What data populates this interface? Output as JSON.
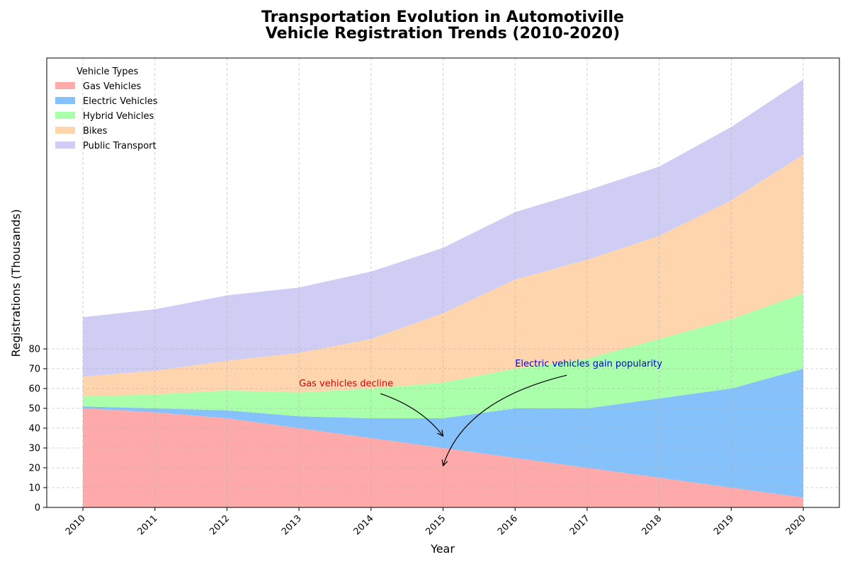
{
  "chart_data": {
    "type": "area",
    "stacked": true,
    "title": "Transportation Evolution in Automotiville",
    "subtitle": "Vehicle Registration Trends (2010-2020)",
    "xlabel": "Year",
    "ylabel": "Registrations (Thousands)",
    "x": [
      2010,
      2011,
      2012,
      2013,
      2014,
      2015,
      2016,
      2017,
      2018,
      2019,
      2020
    ],
    "y_ticks": [
      0,
      10,
      20,
      30,
      40,
      50,
      60,
      70,
      80
    ],
    "ylim": [
      0,
      218
    ],
    "grid": true,
    "legend": {
      "title": "Vehicle Types",
      "placement": "top-left"
    },
    "series": [
      {
        "name": "Gas Vehicles",
        "color": "#ffaaaa",
        "values": [
          50,
          48,
          45,
          40,
          35,
          30,
          25,
          20,
          15,
          10,
          5
        ]
      },
      {
        "name": "Electric Vehicles",
        "color": "#85c1fa",
        "values": [
          1,
          2,
          4,
          6,
          10,
          15,
          25,
          30,
          40,
          50,
          65
        ]
      },
      {
        "name": "Hybrid Vehicles",
        "color": "#aaffaa",
        "values": [
          5,
          7,
          10,
          12,
          15,
          18,
          20,
          25,
          30,
          35,
          38
        ]
      },
      {
        "name": "Bikes",
        "color": "#ffd5ae",
        "values": [
          10,
          12,
          15,
          20,
          25,
          35,
          45,
          50,
          52,
          60,
          70
        ]
      },
      {
        "name": "Public Transport",
        "color": "#cfcdf3",
        "values": [
          30,
          31,
          33,
          33,
          34,
          33,
          34,
          35,
          35,
          37,
          38
        ]
      }
    ],
    "annotations": [
      {
        "text": "Gas vehicles decline",
        "color": "#dd0000",
        "target": [
          2015,
          36
        ],
        "text_at": [
          2013,
          61
        ]
      },
      {
        "text": "Electric vehicles gain popularity",
        "color": "#0000dd",
        "target": [
          2015,
          21
        ],
        "text_at": [
          2016,
          71
        ]
      }
    ]
  }
}
